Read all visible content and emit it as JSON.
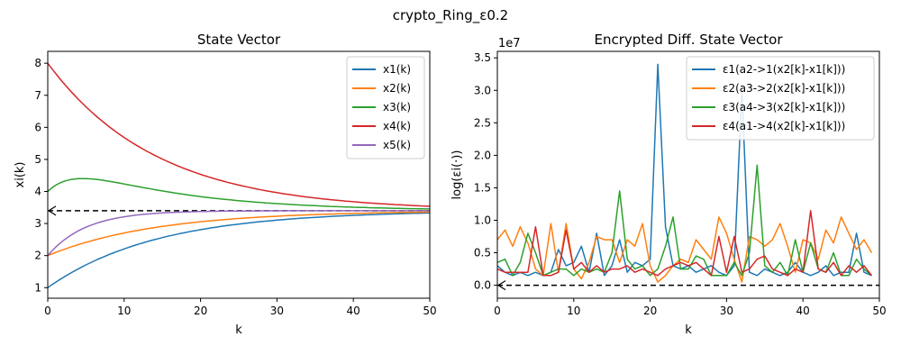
{
  "figure": {
    "suptitle": "crypto_Ring_ε0.2"
  },
  "chart_data": [
    {
      "type": "line",
      "title": "State Vector",
      "xlabel": "k",
      "ylabel": "xi(k)",
      "xlim": [
        0,
        50
      ],
      "ylim": [
        0.67,
        8.37
      ],
      "xticks": [
        0,
        10,
        20,
        30,
        40,
        50
      ],
      "yticks": [
        1,
        2,
        3,
        4,
        5,
        6,
        7,
        8
      ],
      "legend_loc": "upper right",
      "consensus": {
        "value": 3.4,
        "style": "dashed",
        "color": "#000000"
      },
      "series": [
        {
          "name": "x1(k)",
          "color": "#1f77b4",
          "initial": 1.0,
          "final": 3.4,
          "rate": 0.07
        },
        {
          "name": "x2(k)",
          "color": "#ff7f0e",
          "initial": 2.0,
          "final": 3.4,
          "rate": 0.07
        },
        {
          "name": "x3(k)",
          "color": "#2ca02c",
          "initial": 4.0,
          "final": 3.4,
          "rate": 0.07
        },
        {
          "name": "x4(k)",
          "color": "#d62728",
          "initial": 8.0,
          "final": 3.4,
          "rate": 0.07
        },
        {
          "name": "x5(k)",
          "color": "#9467bd",
          "initial": 2.0,
          "final": 3.4,
          "rate": 0.2
        }
      ]
    },
    {
      "type": "line",
      "title": "Encrypted Diff. State Vector",
      "xlabel": "k",
      "ylabel": "log(εi(·))",
      "offset_label": "1e7",
      "xlim": [
        0,
        50
      ],
      "ylim": [
        -0.2,
        3.6
      ],
      "xticks": [
        0,
        10,
        20,
        30,
        40,
        50
      ],
      "yticks": [
        0.0,
        0.5,
        1.0,
        1.5,
        2.0,
        2.5,
        3.0,
        3.5
      ],
      "legend_loc": "upper right",
      "zero_line": {
        "value": 0,
        "style": "dashed",
        "color": "#000000"
      },
      "series": [
        {
          "name": "ε1(a2->1(x2[k]-x1[k]))",
          "color": "#1f77b4",
          "values": [
            0.3,
            0.2,
            0.15,
            0.2,
            0.15,
            0.2,
            0.15,
            0.2,
            0.55,
            0.3,
            0.35,
            0.6,
            0.2,
            0.8,
            0.15,
            0.3,
            0.7,
            0.2,
            0.35,
            0.3,
            0.4,
            3.4,
            0.9,
            0.3,
            0.25,
            0.3,
            0.2,
            0.25,
            0.3,
            0.2,
            0.15,
            0.3,
            3.0,
            0.2,
            0.15,
            0.25,
            0.2,
            0.15,
            0.2,
            0.35,
            0.2,
            0.15,
            0.2,
            0.3,
            0.15,
            0.2,
            0.2,
            0.8,
            0.2,
            0.15
          ]
        },
        {
          "name": "ε2(a3->2(x2[k]-x1[k]))",
          "color": "#ff7f0e",
          "values": [
            0.7,
            0.85,
            0.6,
            0.9,
            0.65,
            0.25,
            0.15,
            0.95,
            0.2,
            0.95,
            0.25,
            0.1,
            0.35,
            0.75,
            0.7,
            0.7,
            0.35,
            0.7,
            0.6,
            0.95,
            0.3,
            0.05,
            0.15,
            0.3,
            0.4,
            0.35,
            0.7,
            0.55,
            0.4,
            1.05,
            0.8,
            0.4,
            0.05,
            0.75,
            0.7,
            0.6,
            0.7,
            0.95,
            0.6,
            0.2,
            0.7,
            0.65,
            0.4,
            0.85,
            0.65,
            1.05,
            0.8,
            0.55,
            0.7,
            0.5
          ]
        },
        {
          "name": "ε3(a4->3(x2[k]-x1[k]))",
          "color": "#2ca02c",
          "values": [
            0.35,
            0.4,
            0.15,
            0.35,
            0.8,
            0.5,
            0.15,
            0.2,
            0.25,
            0.25,
            0.15,
            0.25,
            0.2,
            0.25,
            0.2,
            0.5,
            1.45,
            0.4,
            0.25,
            0.3,
            0.15,
            0.25,
            0.6,
            1.05,
            0.25,
            0.25,
            0.45,
            0.4,
            0.15,
            0.15,
            0.15,
            0.35,
            0.15,
            0.5,
            1.85,
            0.3,
            0.2,
            0.35,
            0.15,
            0.7,
            0.2,
            0.65,
            0.25,
            0.2,
            0.5,
            0.15,
            0.15,
            0.4,
            0.25,
            0.15
          ]
        },
        {
          "name": "ε4(a1->4(x2[k]-x1[k]))",
          "color": "#d62728",
          "values": [
            0.25,
            0.2,
            0.2,
            0.2,
            0.2,
            0.9,
            0.15,
            0.15,
            0.2,
            0.85,
            0.25,
            0.35,
            0.2,
            0.3,
            0.2,
            0.25,
            0.25,
            0.3,
            0.2,
            0.25,
            0.2,
            0.15,
            0.25,
            0.3,
            0.35,
            0.3,
            0.35,
            0.25,
            0.15,
            0.75,
            0.2,
            0.75,
            0.2,
            0.25,
            0.4,
            0.45,
            0.25,
            0.2,
            0.15,
            0.25,
            0.2,
            1.15,
            0.25,
            0.2,
            0.35,
            0.15,
            0.3,
            0.2,
            0.3,
            0.15
          ]
        }
      ]
    }
  ]
}
